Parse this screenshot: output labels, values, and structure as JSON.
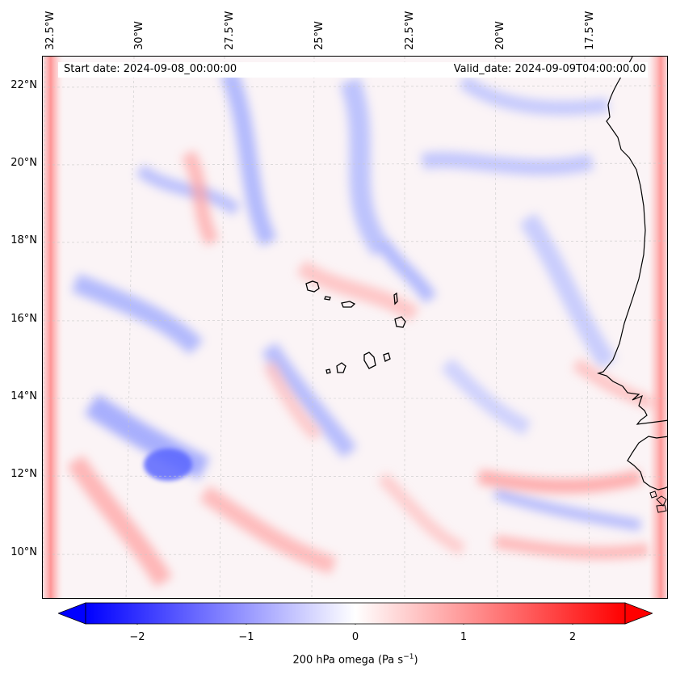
{
  "map": {
    "variable": "200 hPa omega",
    "unit_base": "Pa s",
    "unit_exponent": "−1",
    "start_date": "Start date: 2024-09-08_00:00:00",
    "valid_date": "Valid_date: 2024-09-09T04:00:00.00",
    "longitude_labels": [
      "32.5°W",
      "30°W",
      "27.5°W",
      "25°W",
      "22.5°W",
      "20°W",
      "17.5°W"
    ],
    "latitude_labels": [
      "22°N",
      "20°N",
      "18°N",
      "16°N",
      "14°N",
      "12°N",
      "10°N"
    ],
    "colorbar": {
      "ticks": [
        "−2",
        "−1",
        "0",
        "1",
        "2"
      ],
      "range": [
        -2.75,
        2.75
      ],
      "low_color": "#0000ff",
      "mid_color": "#ffffff",
      "high_color": "#ff0000"
    },
    "features": [
      "coastline",
      "cape-verde-islands",
      "graticule"
    ]
  }
}
